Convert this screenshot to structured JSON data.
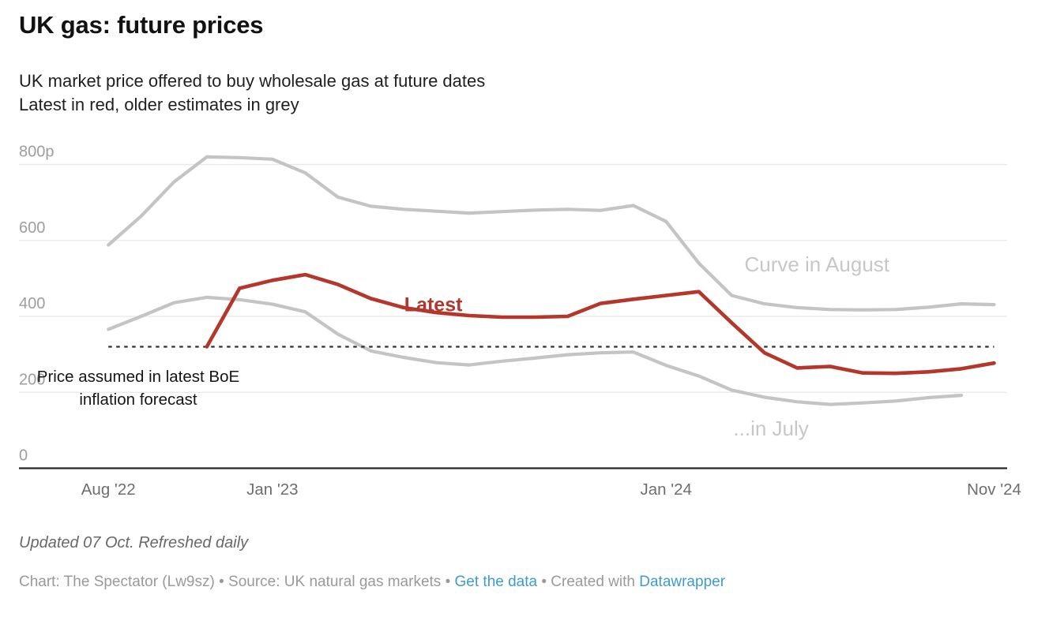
{
  "page": {
    "title": "UK gas: future prices",
    "subtitle_line1": "UK market price offered to buy wholesale gas at future dates",
    "subtitle_line2": "Latest in red, older estimates in grey"
  },
  "chart_data": {
    "type": "line",
    "title": "UK gas: future prices",
    "subtitle": [
      "UK market price offered to buy wholesale gas at future dates",
      "Latest in red, older estimates in grey"
    ],
    "y_axis": {
      "unit": "p",
      "range": [
        0,
        860
      ],
      "ticks": [
        {
          "value": 0,
          "label": "0"
        },
        {
          "value": 200,
          "label": "200"
        },
        {
          "value": 400,
          "label": "400"
        },
        {
          "value": 600,
          "label": "600"
        },
        {
          "value": 800,
          "label": "800p"
        }
      ],
      "grid": true
    },
    "x_axis": {
      "months_domain": [
        0,
        27
      ],
      "month0": "Aug '22",
      "ticks": [
        {
          "label": "Aug '22",
          "month": 0
        },
        {
          "label": "Jan '23",
          "month": 5
        },
        {
          "label": "Jan '24",
          "month": 17
        },
        {
          "label": "Nov '24",
          "month": 27
        }
      ]
    },
    "series": [
      {
        "id": "curve-august",
        "name": "Curve in August",
        "color": "#c4c4c4",
        "width": 4.2,
        "start_month": 0,
        "values": [
          588,
          664,
          754,
          820,
          818,
          814,
          778,
          714,
          690,
          682,
          677,
          672,
          676,
          680,
          682,
          679,
          692,
          650,
          540,
          455,
          433,
          423,
          418,
          417,
          418,
          424,
          433,
          431
        ]
      },
      {
        "id": "curve-july",
        "name": "...in July",
        "color": "#c4c4c4",
        "width": 4.2,
        "start_month": 0,
        "values": [
          366,
          400,
          436,
          450,
          444,
          432,
          412,
          353,
          309,
          292,
          278,
          272,
          282,
          290,
          299,
          304,
          306,
          271,
          243,
          206,
          187,
          175,
          168,
          172,
          177,
          186,
          192
        ]
      },
      {
        "id": "latest",
        "name": "Latest",
        "color": "#b5362b",
        "width": 4.6,
        "start_month": 3,
        "values": [
          320,
          474,
          495,
          510,
          484,
          447,
          423,
          410,
          402,
          398,
          398,
          400,
          434,
          445,
          455,
          465,
          383,
          304,
          264,
          268,
          251,
          250,
          254,
          262,
          277
        ]
      }
    ],
    "reference_line": {
      "value": 320,
      "from_month": 0,
      "to_month": 27,
      "style": "dashed",
      "color": "#2f2f2f",
      "label": "Price assumed in latest BoE inflation forecast"
    },
    "labels": [
      {
        "lines": [
          "Latest"
        ],
        "month": 9.02,
        "value": 413.5,
        "anchor": "start",
        "color": "#b5362b",
        "size": 25,
        "weight": "bold",
        "line_height": 29
      },
      {
        "lines": [
          "Curve in August"
        ],
        "month": 21.6,
        "value": 518,
        "anchor": "middle",
        "color": "#c7c7c7",
        "size": 26,
        "weight": "normal",
        "line_height": 30
      },
      {
        "lines": [
          "...in July"
        ],
        "month": 20.2,
        "value": 86,
        "anchor": "middle",
        "color": "#c7c7c7",
        "size": 26,
        "weight": "normal",
        "line_height": 30
      },
      {
        "lines": [
          "Price assumed in latest BoE",
          "inflation forecast"
        ],
        "month": 0.91,
        "value": 227.5,
        "anchor": "middle",
        "color": "#161616",
        "size": 20.5,
        "weight": "normal",
        "line_height": 29
      }
    ],
    "layout_hints": {
      "grid_color": "#e8e8e8",
      "axis_color": "#282828",
      "y_tick_color": "#9e9e9e",
      "x_tick_color": "#6e6e6e",
      "legend": "inline-labels"
    }
  },
  "footer": {
    "updated": "Updated 07 Oct. Refreshed daily",
    "attribution_prefix": "Chart: The Spectator (Lw9sz) • Source: UK natural gas markets • ",
    "get_data_label": "Get the data",
    "mid": " • Created with ",
    "datawrapper_label": "Datawrapper"
  }
}
